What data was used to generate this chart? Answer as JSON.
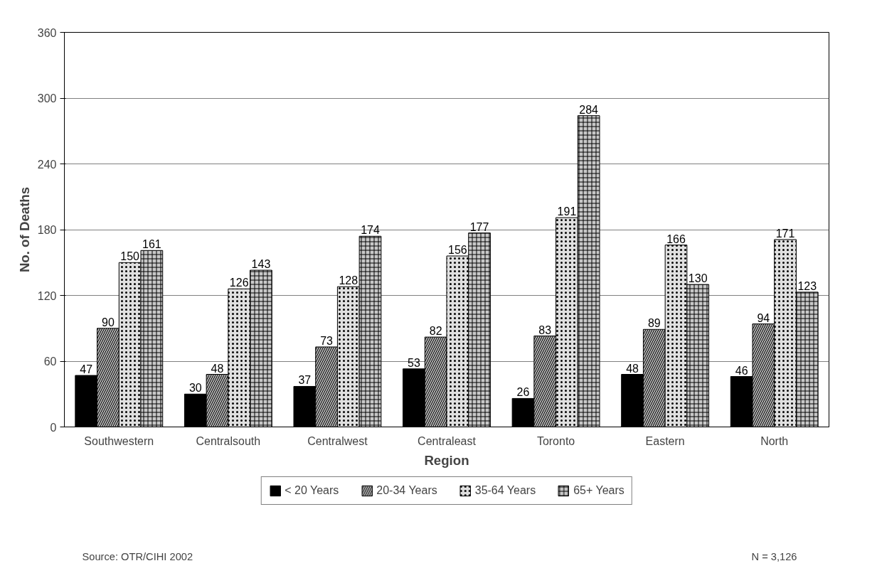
{
  "chart_data": {
    "type": "bar",
    "xlabel": "Region",
    "ylabel": "No. of Deaths",
    "categories": [
      "Southwestern",
      "Centralsouth",
      "Centralwest",
      "Centraleast",
      "Toronto",
      "Eastern",
      "North"
    ],
    "series": [
      {
        "name": "< 20 Years",
        "color": "#000000",
        "values": [
          47,
          30,
          37,
          53,
          26,
          48,
          46
        ]
      },
      {
        "name": "20-34 Years",
        "color": "#b0b0b0",
        "values": [
          90,
          48,
          73,
          82,
          83,
          89,
          94
        ]
      },
      {
        "name": "35-64 Years",
        "color": "#e0e0e0",
        "values": [
          150,
          126,
          128,
          156,
          191,
          166,
          171
        ]
      },
      {
        "name": "65+ Years",
        "color": "#c8c8c8",
        "values": [
          161,
          143,
          174,
          177,
          284,
          130,
          123
        ]
      }
    ],
    "ylim": [
      0,
      360
    ],
    "yticks": [
      0,
      60,
      120,
      180,
      240,
      300,
      360
    ],
    "grid": "y",
    "legend": "bottom",
    "data_labels": true,
    "annotations": [
      "Source: OTR/CIHI 2002",
      "N = 3,126"
    ]
  }
}
